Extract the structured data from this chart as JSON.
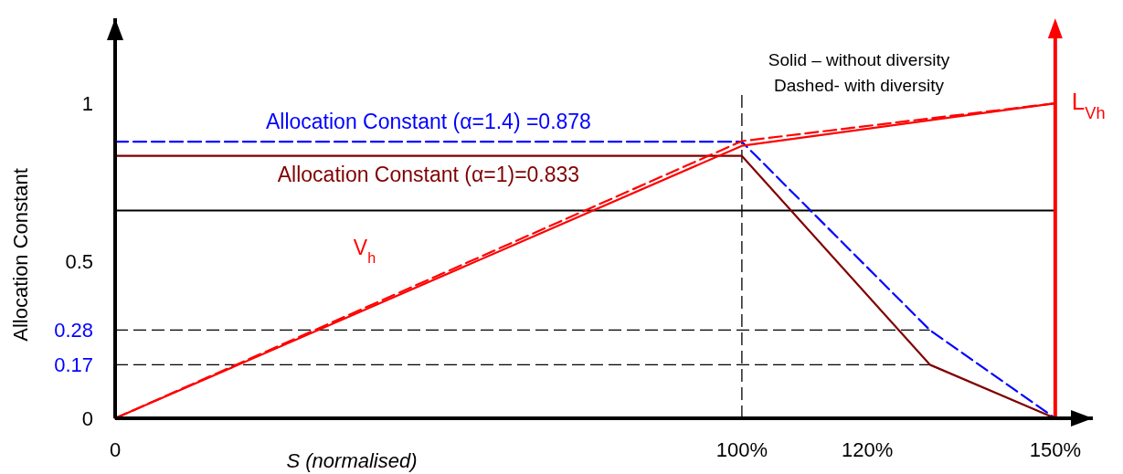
{
  "chart_data": {
    "type": "line",
    "xlabel": "S (normalised)",
    "ylabel": "Allocation Constant",
    "xlim": [
      0,
      156
    ],
    "ylim": [
      0,
      1.27
    ],
    "xticks": [
      0,
      {
        "value": 100,
        "label": "100%"
      },
      {
        "value": 120,
        "label": "120%"
      },
      {
        "value": 150,
        "label": "150%"
      }
    ],
    "yticks": [
      0,
      0.17,
      0.28,
      0.5,
      1
    ],
    "grid": false,
    "marker": "none",
    "series": [
      {
        "name": "Allocation Constant (α=1.4) =0.878",
        "color": "#0000ff",
        "line_style": "dashed",
        "x": [
          0,
          100,
          130,
          150
        ],
        "values": [
          0.878,
          0.878,
          0.28,
          0
        ]
      },
      {
        "name": "Allocation Constant (α=1)=0.833",
        "color": "#800000",
        "line_style": "solid",
        "x": [
          0,
          100,
          130,
          150
        ],
        "values": [
          0.833,
          0.833,
          0.17,
          0
        ]
      },
      {
        "name": "V$_{h}$",
        "color": "#ff0000",
        "line_style": "solid",
        "x": [
          0,
          100,
          150
        ],
        "values": [
          0,
          0.865,
          1.0
        ]
      },
      {
        "color": "#ff0000",
        "line_style": "dashed",
        "x": [
          0,
          100,
          150
        ],
        "values": [
          0,
          0.88,
          1.0
        ]
      }
    ],
    "ref_lines": [
      {
        "axis": "y",
        "value": 0.66,
        "color": "#000000",
        "line_style": "solid"
      },
      {
        "axis": "y",
        "value": 0.28,
        "color": "#000000",
        "line_style": "dashed"
      },
      {
        "axis": "y",
        "value": 0.17,
        "color": "#000000",
        "line_style": "dashed"
      },
      {
        "axis": "x",
        "value": 100,
        "color": "#000000",
        "line_style": "dashed"
      },
      {
        "axis": "x",
        "value": 150,
        "color": "#ff0000",
        "line_style": "solid",
        "label": "L$_{Vh}$"
      }
    ],
    "annotations": [
      "Solid – without diversity",
      "Dashed- with diversity"
    ]
  }
}
